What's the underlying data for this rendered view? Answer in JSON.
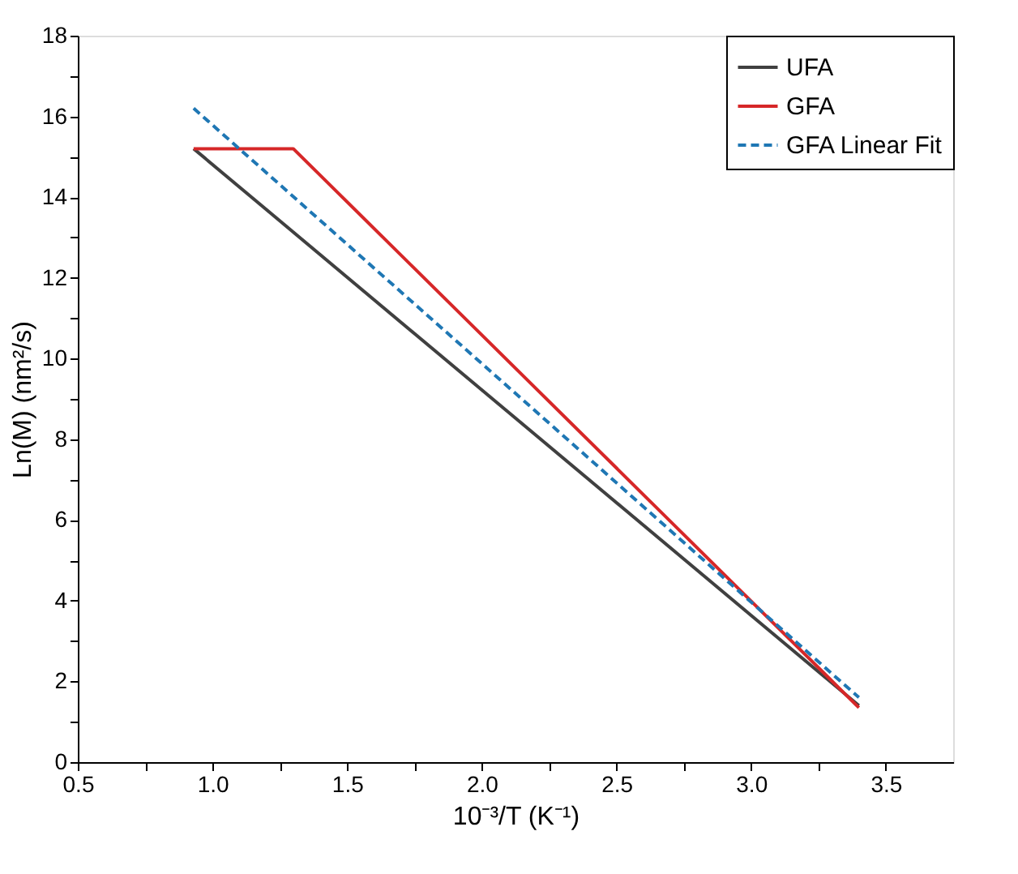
{
  "chart_data": {
    "type": "line",
    "xlabel": "10⁻³/T (K⁻¹)",
    "ylabel": "Ln(M) (nm²/s)",
    "xlim": [
      0.5,
      3.75
    ],
    "xticks": [
      0.5,
      {
        "value": 0.75,
        "label": null
      },
      {
        "value": 1.0,
        "label": "1.0"
      },
      {
        "value": 1.25,
        "label": null
      },
      1.5,
      {
        "value": 1.75,
        "label": null
      },
      {
        "value": 2.0,
        "label": "2.0"
      },
      {
        "value": 2.25,
        "label": null
      },
      2.5,
      {
        "value": 2.75,
        "label": null
      },
      {
        "value": 3.0,
        "label": "3.0"
      },
      {
        "value": 3.25,
        "label": null
      },
      3.5
    ],
    "ylim": [
      0,
      18
    ],
    "yticks": [
      0,
      {
        "value": 1,
        "label": null
      },
      2,
      {
        "value": 3,
        "label": null
      },
      4,
      {
        "value": 5,
        "label": null
      },
      6,
      {
        "value": 7,
        "label": null
      },
      8,
      {
        "value": 9,
        "label": null
      },
      10,
      {
        "value": 11,
        "label": null
      },
      12,
      {
        "value": 13,
        "label": null
      },
      14,
      {
        "value": 15,
        "label": null
      },
      16,
      {
        "value": 17,
        "label": null
      },
      18
    ],
    "grid": false,
    "legend": "top right",
    "marker": "none",
    "series": [
      {
        "name": "UFA",
        "color": "#404040",
        "line_style": "solid",
        "x": [
          0.93,
          3.4
        ],
        "values": [
          15.2,
          1.4
        ]
      },
      {
        "name": "GFA",
        "color": "#d62728",
        "line_style": "solid",
        "x": [
          0.93,
          1.3,
          3.4
        ],
        "values": [
          15.2,
          15.2,
          1.35
        ]
      },
      {
        "name": "GFA Linear Fit",
        "color": "#1f77b4",
        "line_style": "dashed",
        "x": [
          0.93,
          3.4
        ],
        "values": [
          16.2,
          1.6
        ]
      }
    ]
  }
}
